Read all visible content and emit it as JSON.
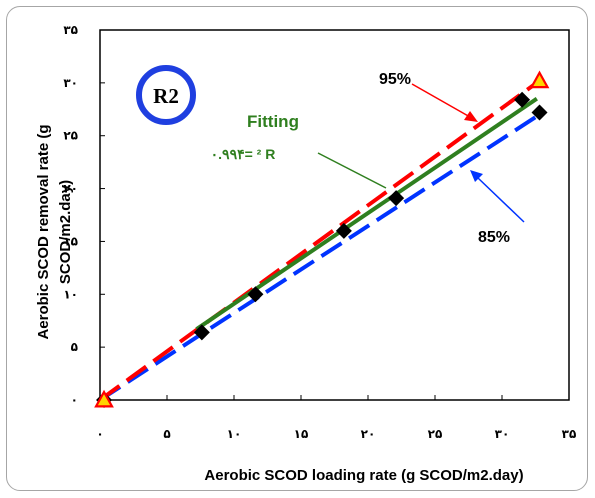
{
  "chart_data": {
    "type": "scatter",
    "xlabel": "Aerobic SCOD loading rate (g SCOD/m2.day)",
    "ylabel_line1": "Aerobic SCOD removal rate (g",
    "ylabel_line2": "SCOD/m2.day)",
    "xlim": [
      0,
      35
    ],
    "ylim": [
      0,
      35
    ],
    "x_ticks": [
      0,
      5,
      10,
      15,
      20,
      25,
      30,
      35
    ],
    "x_tick_labels": [
      "۰",
      "۵",
      "۱۰",
      "۱۵",
      "۲۰",
      "۲۵",
      "۳۰",
      "۳۵"
    ],
    "y_ticks": [
      0,
      5,
      10,
      15,
      20,
      25,
      30,
      35
    ],
    "y_tick_labels": [
      "۰",
      "۵",
      "۱۰",
      "۱۵",
      "۲۰",
      "۲۵",
      "۳۰",
      "۳۵"
    ],
    "grid": false,
    "points": [
      {
        "x": 0.3,
        "y": 0.0
      },
      {
        "x": 7.6,
        "y": 6.4
      },
      {
        "x": 11.6,
        "y": 10.0
      },
      {
        "x": 18.2,
        "y": 16.0
      },
      {
        "x": 22.1,
        "y": 19.1
      },
      {
        "x": 31.5,
        "y": 28.4
      },
      {
        "x": 32.8,
        "y": 27.2
      }
    ],
    "triangles": [
      {
        "x": 0.3,
        "y": 0.0
      },
      {
        "x": 32.8,
        "y": 30.2
      }
    ],
    "lines": [
      {
        "name": "95%",
        "x": [
          0,
          32.8
        ],
        "y": [
          0,
          30.2
        ],
        "color": "#ff0000",
        "dash": true
      },
      {
        "name": "85%",
        "x": [
          0,
          32.8
        ],
        "y": [
          0,
          27.0
        ],
        "color": "#0033ff",
        "dash": true
      },
      {
        "name": "Fitting",
        "x": [
          7.2,
          32.6
        ],
        "y": [
          6.7,
          28.5
        ],
        "color": "#2f7f1f",
        "dash": false
      }
    ],
    "annotations": {
      "badge": "R2",
      "label_95": "95%",
      "label_85": "85%",
      "fitting": "Fitting",
      "r2_text": "۰.۹۹۴= ² R"
    }
  },
  "colors": {
    "red": "#ff0000",
    "blue": "#0033ff",
    "green": "#2f7f1f",
    "badge_ring": "#1f3fe0"
  }
}
